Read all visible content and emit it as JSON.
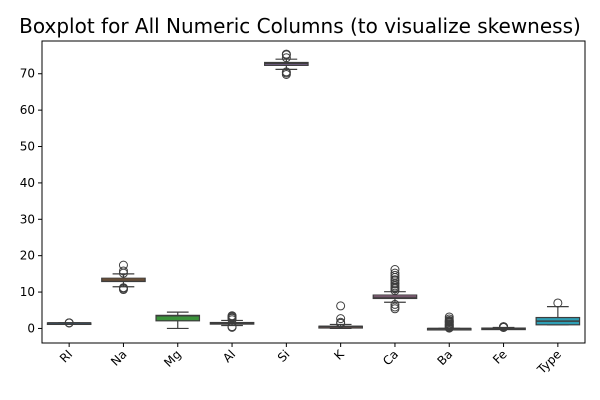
{
  "chart_data": {
    "type": "box",
    "title": "Boxplot for All Numeric Columns (to visualize skewness)",
    "xlabel": "",
    "ylabel": "",
    "ylim": [
      -4,
      79
    ],
    "yticks": [
      0,
      10,
      20,
      30,
      40,
      50,
      60,
      70
    ],
    "grid": false,
    "categories": [
      "RI",
      "Na",
      "Mg",
      "Al",
      "Si",
      "K",
      "Ca",
      "Ba",
      "Fe",
      "Type"
    ],
    "boxes": [
      {
        "name": "RI",
        "color": "#3274a1",
        "whisker_low": 1.51,
        "q1": 1.516,
        "median": 1.518,
        "q3": 1.519,
        "whisker_high": 1.524,
        "outliers": [
          1.51,
          1.53,
          1.534
        ]
      },
      {
        "name": "Na",
        "color": "#e1812c",
        "whisker_low": 11.45,
        "q1": 12.9,
        "median": 13.3,
        "q3": 13.8,
        "whisker_high": 15.0,
        "outliers": [
          10.7,
          11.0,
          11.2,
          15.2,
          15.8,
          17.4
        ]
      },
      {
        "name": "Mg",
        "color": "#3a923a",
        "whisker_low": 0.0,
        "q1": 2.1,
        "median": 3.48,
        "q3": 3.6,
        "whisker_high": 4.49,
        "outliers": []
      },
      {
        "name": "Al",
        "color": "#c03d3e",
        "whisker_low": 0.8,
        "q1": 1.19,
        "median": 1.36,
        "q3": 1.63,
        "whisker_high": 2.2,
        "outliers": [
          0.3,
          0.5,
          2.4,
          2.8,
          3.0,
          3.3,
          3.5
        ]
      },
      {
        "name": "Si",
        "color": "#9372b2",
        "whisker_low": 71.2,
        "q1": 72.3,
        "median": 72.8,
        "q3": 73.1,
        "whisker_high": 74.0,
        "outliers": [
          69.8,
          70.2,
          70.5,
          74.4,
          75.2,
          75.4
        ]
      },
      {
        "name": "K",
        "color": "#845b53",
        "whisker_low": 0.0,
        "q1": 0.12,
        "median": 0.56,
        "q3": 0.61,
        "whisker_high": 1.1,
        "outliers": [
          1.4,
          1.7,
          2.7,
          6.2
        ]
      },
      {
        "name": "Ca",
        "color": "#d684bd",
        "whisker_low": 7.2,
        "q1": 8.24,
        "median": 8.6,
        "q3": 9.17,
        "whisker_high": 10.1,
        "outliers": [
          5.4,
          5.9,
          6.6,
          10.4,
          10.9,
          11.3,
          11.7,
          12.2,
          12.5,
          13.1,
          13.4,
          14.0,
          14.6,
          15.2,
          16.2
        ]
      },
      {
        "name": "Ba",
        "color": "#7f7f7f",
        "whisker_low": 0.0,
        "q1": 0.0,
        "median": 0.0,
        "q3": 0.0,
        "whisker_high": 0.0,
        "outliers": [
          0.1,
          0.3,
          0.5,
          0.7,
          0.9,
          1.1,
          1.3,
          1.6,
          1.8,
          2.0,
          2.2,
          2.6,
          3.15
        ]
      },
      {
        "name": "Fe",
        "color": "#a9aa35",
        "whisker_low": 0.0,
        "q1": 0.0,
        "median": 0.0,
        "q3": 0.1,
        "whisker_high": 0.25,
        "outliers": [
          0.28,
          0.31,
          0.34,
          0.37,
          0.4,
          0.45,
          0.51
        ]
      },
      {
        "name": "Type",
        "color": "#2e9fb5",
        "whisker_low": 1.0,
        "q1": 1.0,
        "median": 2.0,
        "q3": 3.0,
        "whisker_high": 6.0,
        "outliers": [
          7.0
        ]
      }
    ]
  }
}
